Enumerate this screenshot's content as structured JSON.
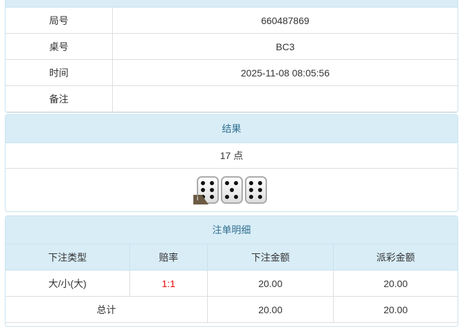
{
  "info": {
    "rows": [
      {
        "label": "局号",
        "value": "660487869"
      },
      {
        "label": "桌号",
        "value": "BC3"
      },
      {
        "label": "时间",
        "value": "2025-11-08 08:05:56"
      },
      {
        "label": "备注",
        "value": ""
      }
    ]
  },
  "result": {
    "title": "结果",
    "points": "17 点",
    "dice": [
      6,
      5,
      6
    ]
  },
  "bets": {
    "title": "注单明细",
    "headers": [
      "下注类型",
      "赔率",
      "下注金额",
      "派彩金额"
    ],
    "rows": [
      {
        "type": "大/小(大)",
        "odds": "1:1",
        "amount": "20.00",
        "payout": "20.00"
      }
    ],
    "total": {
      "label": "总计",
      "amount": "20.00",
      "payout": "20.00"
    },
    "odds_color": "#ee0000"
  }
}
